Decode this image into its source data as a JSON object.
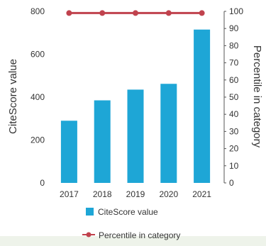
{
  "chart_data": {
    "type": "bar",
    "categories": [
      "2017",
      "2018",
      "2019",
      "2020",
      "2021"
    ],
    "series": [
      {
        "name": "CiteScore value",
        "type": "bar",
        "axis": "left",
        "values": [
          290,
          385,
          435,
          462,
          715
        ]
      },
      {
        "name": "Percentile in category",
        "type": "line",
        "axis": "right",
        "values": [
          99,
          99,
          99,
          99,
          99
        ]
      }
    ],
    "ylabel": "CiteScore value",
    "y2label": "Percentile in category",
    "ylim": [
      0,
      800
    ],
    "y2lim": [
      0,
      100
    ],
    "yticks": [
      "0",
      "200",
      "400",
      "600",
      "800"
    ],
    "y2ticks": [
      "0",
      "10",
      "20",
      "30",
      "40",
      "50",
      "60",
      "70",
      "80",
      "90",
      "100"
    ],
    "legend": "bottom",
    "grid": false,
    "colors": {
      "bar": "#1ea6d6",
      "line": "#c0424d"
    }
  }
}
